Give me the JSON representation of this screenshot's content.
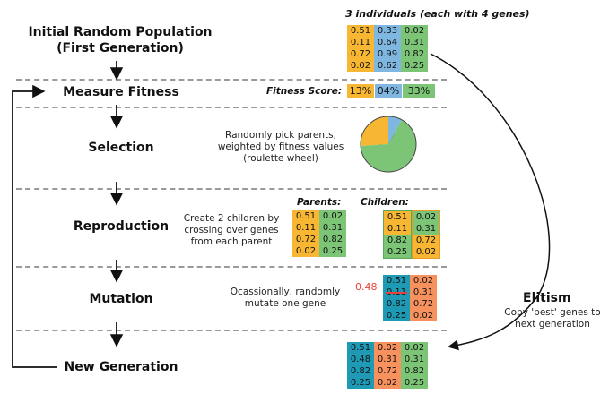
{
  "header": {
    "individuals_label": "3 individuals (each with 4 genes)"
  },
  "stages": {
    "initial_line1": "Initial Random Population",
    "initial_line2": "(First Generation)",
    "measure": "Measure Fitness",
    "selection": "Selection",
    "reproduction": "Reproduction",
    "mutation": "Mutation",
    "new_generation": "New Generation"
  },
  "initial_population": [
    [
      "0.51",
      "0.11",
      "0.72",
      "0.02"
    ],
    [
      "0.33",
      "0.64",
      "0.99",
      "0.62"
    ],
    [
      "0.02",
      "0.31",
      "0.82",
      "0.25"
    ]
  ],
  "fitness": {
    "label": "Fitness Score:",
    "scores": [
      "13%",
      "04%",
      "33%"
    ]
  },
  "selection": {
    "desc_line1": "Randomly pick parents,",
    "desc_line2": "weighted by fitness values",
    "desc_line3": "(roulette wheel)",
    "wheel_fractions": [
      0.26,
      0.08,
      0.66
    ]
  },
  "reproduction": {
    "desc_line1": "Create 2 children by",
    "desc_line2": "crossing over genes",
    "desc_line3": "from each parent",
    "parents_label": "Parents:",
    "children_label": "Children:",
    "parents": [
      [
        "0.51",
        "0.11",
        "0.72",
        "0.02"
      ],
      [
        "0.02",
        "0.31",
        "0.82",
        "0.25"
      ]
    ],
    "children": [
      [
        "0.51",
        "0.11",
        "0.82",
        "0.25"
      ],
      [
        "0.02",
        "0.31",
        "0.72",
        "0.02"
      ]
    ]
  },
  "mutation": {
    "desc_line1": "Ocassionally, randomly",
    "desc_line2": "mutate one gene",
    "new_value": "0.48",
    "individuals": [
      [
        "0.51",
        "0.11",
        "0.82",
        "0.25"
      ],
      [
        "0.02",
        "0.31",
        "0.72",
        "0.02"
      ]
    ]
  },
  "elitism": {
    "title": "Elitism",
    "desc_line1": "Copy 'best' genes to",
    "desc_line2": "next generation"
  },
  "new_generation": [
    [
      "0.51",
      "0.48",
      "0.82",
      "0.25"
    ],
    [
      "0.02",
      "0.31",
      "0.72",
      "0.02"
    ],
    [
      "0.02",
      "0.31",
      "0.82",
      "0.25"
    ]
  ],
  "colors": {
    "yellow": "#f7b733",
    "blue": "#7fb7e0",
    "green": "#7cc576",
    "teal": "#1f9ab5",
    "orange": "#f7915e",
    "mutation_red": "#e8413c"
  }
}
